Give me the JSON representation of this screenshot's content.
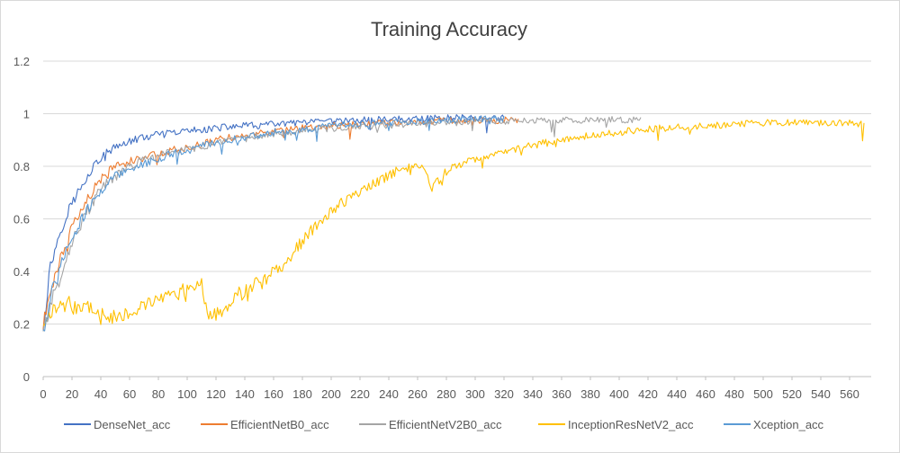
{
  "chart_data": {
    "type": "line",
    "title": "Training Accuracy",
    "xlabel": "",
    "ylabel": "",
    "xlim": [
      0,
      575
    ],
    "ylim": [
      0,
      1.2
    ],
    "x_ticks": [
      0,
      20,
      40,
      60,
      80,
      100,
      120,
      140,
      160,
      180,
      200,
      220,
      240,
      260,
      280,
      300,
      320,
      340,
      360,
      380,
      400,
      420,
      440,
      460,
      480,
      500,
      520,
      540,
      560
    ],
    "y_ticks": [
      0,
      0.2,
      0.4,
      0.6,
      0.8,
      1,
      1.2
    ],
    "y_tick_labels": [
      "0",
      "0.2",
      "0.4",
      "0.6",
      "0.8",
      "1",
      "1.2"
    ],
    "grid": "horizontal",
    "legend_position": "bottom",
    "series": [
      {
        "name": "DenseNet_acc",
        "color": "#4472C4",
        "x": [
          0,
          5,
          10,
          15,
          20,
          25,
          30,
          35,
          40,
          45,
          50,
          55,
          60,
          70,
          80,
          90,
          100,
          110,
          120,
          130,
          140,
          150,
          160,
          180,
          200,
          220,
          240,
          260,
          280,
          300,
          320
        ],
        "y": [
          0.19,
          0.42,
          0.52,
          0.6,
          0.66,
          0.71,
          0.76,
          0.8,
          0.83,
          0.855,
          0.87,
          0.885,
          0.895,
          0.91,
          0.92,
          0.925,
          0.935,
          0.94,
          0.945,
          0.95,
          0.955,
          0.955,
          0.96,
          0.965,
          0.97,
          0.975,
          0.98,
          0.98,
          0.985,
          0.985,
          0.985
        ]
      },
      {
        "name": "EfficientNetB0_acc",
        "color": "#ED7D31",
        "x": [
          0,
          5,
          10,
          15,
          20,
          25,
          30,
          35,
          40,
          45,
          50,
          55,
          60,
          70,
          80,
          90,
          100,
          110,
          120,
          130,
          140,
          150,
          160,
          180,
          200,
          220,
          240,
          260,
          280,
          300,
          320,
          330
        ],
        "y": [
          0.19,
          0.33,
          0.42,
          0.5,
          0.56,
          0.62,
          0.67,
          0.71,
          0.75,
          0.78,
          0.8,
          0.81,
          0.82,
          0.835,
          0.85,
          0.86,
          0.87,
          0.885,
          0.9,
          0.91,
          0.915,
          0.925,
          0.93,
          0.945,
          0.955,
          0.96,
          0.965,
          0.97,
          0.975,
          0.975,
          0.975,
          0.975
        ]
      },
      {
        "name": "EfficientNetV2B0_acc",
        "color": "#A5A5A5",
        "x": [
          0,
          5,
          10,
          15,
          20,
          25,
          30,
          35,
          40,
          45,
          50,
          55,
          60,
          70,
          80,
          90,
          100,
          110,
          120,
          130,
          140,
          150,
          160,
          180,
          200,
          220,
          240,
          260,
          280,
          300,
          320,
          340,
          360,
          380,
          400,
          415
        ],
        "y": [
          0.18,
          0.27,
          0.35,
          0.44,
          0.51,
          0.57,
          0.62,
          0.67,
          0.71,
          0.74,
          0.76,
          0.78,
          0.8,
          0.825,
          0.84,
          0.855,
          0.865,
          0.875,
          0.885,
          0.895,
          0.905,
          0.915,
          0.925,
          0.935,
          0.945,
          0.95,
          0.955,
          0.96,
          0.965,
          0.97,
          0.97,
          0.975,
          0.975,
          0.975,
          0.978,
          0.975
        ]
      },
      {
        "name": "InceptionResNetV2_acc",
        "color": "#FFC000",
        "x": [
          0,
          10,
          20,
          30,
          40,
          50,
          60,
          70,
          80,
          90,
          100,
          110,
          115,
          125,
          135,
          145,
          155,
          165,
          175,
          185,
          195,
          205,
          215,
          225,
          235,
          245,
          255,
          262,
          270,
          280,
          300,
          320,
          340,
          360,
          380,
          400,
          420,
          440,
          460,
          480,
          500,
          520,
          540,
          560,
          570
        ],
        "y": [
          0.2,
          0.27,
          0.28,
          0.27,
          0.24,
          0.23,
          0.25,
          0.27,
          0.29,
          0.31,
          0.33,
          0.36,
          0.22,
          0.26,
          0.31,
          0.34,
          0.37,
          0.42,
          0.48,
          0.55,
          0.6,
          0.65,
          0.69,
          0.72,
          0.75,
          0.78,
          0.8,
          0.81,
          0.72,
          0.78,
          0.83,
          0.86,
          0.88,
          0.9,
          0.92,
          0.93,
          0.94,
          0.95,
          0.955,
          0.96,
          0.965,
          0.965,
          0.965,
          0.965,
          0.96
        ]
      },
      {
        "name": "Xception_acc",
        "color": "#5B9BD5",
        "x": [
          0,
          5,
          10,
          15,
          20,
          25,
          30,
          35,
          40,
          45,
          50,
          55,
          60,
          70,
          80,
          90,
          100,
          110,
          120,
          130,
          140,
          150,
          160,
          180,
          200,
          220,
          240,
          260,
          280,
          300,
          320
        ],
        "y": [
          0.18,
          0.3,
          0.38,
          0.46,
          0.52,
          0.58,
          0.63,
          0.67,
          0.71,
          0.74,
          0.76,
          0.775,
          0.79,
          0.81,
          0.83,
          0.85,
          0.86,
          0.875,
          0.89,
          0.9,
          0.91,
          0.92,
          0.93,
          0.94,
          0.955,
          0.96,
          0.965,
          0.97,
          0.975,
          0.98,
          0.98
        ]
      }
    ]
  }
}
